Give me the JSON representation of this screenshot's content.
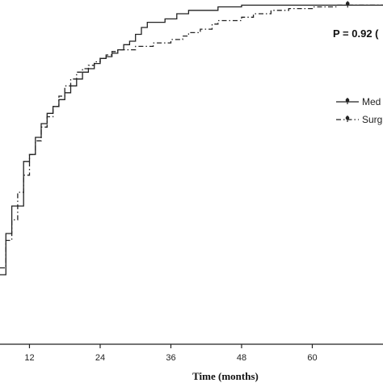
{
  "chart_data": {
    "type": "line",
    "xlabel": "Time (months)",
    "x_ticks": [
      "12",
      "24",
      "36",
      "48",
      "60"
    ],
    "xlim": [
      7,
      72
    ],
    "ylim": [
      0,
      1
    ],
    "annotation": "P = 0.92 (",
    "legend": {
      "placement": "right",
      "entries": [
        "Med",
        "Surg"
      ]
    },
    "series": [
      {
        "name": "Med",
        "style": "solid",
        "color": "#222222",
        "points": [
          [
            7,
            0.2
          ],
          [
            8,
            0.2
          ],
          [
            8,
            0.32
          ],
          [
            9,
            0.32
          ],
          [
            9,
            0.4
          ],
          [
            11,
            0.4
          ],
          [
            11,
            0.53
          ],
          [
            12,
            0.53
          ],
          [
            12,
            0.55
          ],
          [
            13,
            0.55
          ],
          [
            13,
            0.6
          ],
          [
            14,
            0.6
          ],
          [
            14,
            0.64
          ],
          [
            15,
            0.64
          ],
          [
            15,
            0.67
          ],
          [
            16,
            0.67
          ],
          [
            16,
            0.69
          ],
          [
            17,
            0.69
          ],
          [
            17,
            0.71
          ],
          [
            18,
            0.71
          ],
          [
            18,
            0.73
          ],
          [
            19,
            0.73
          ],
          [
            19,
            0.75
          ],
          [
            20,
            0.75
          ],
          [
            20,
            0.77
          ],
          [
            21,
            0.77
          ],
          [
            21,
            0.79
          ],
          [
            22,
            0.79
          ],
          [
            22,
            0.8
          ],
          [
            23,
            0.8
          ],
          [
            23,
            0.815
          ],
          [
            24,
            0.815
          ],
          [
            24,
            0.83
          ],
          [
            25,
            0.83
          ],
          [
            25,
            0.835
          ],
          [
            26,
            0.835
          ],
          [
            26,
            0.845
          ],
          [
            27,
            0.845
          ],
          [
            27,
            0.855
          ],
          [
            28,
            0.855
          ],
          [
            28,
            0.87
          ],
          [
            29,
            0.87
          ],
          [
            29,
            0.88
          ],
          [
            30,
            0.88
          ],
          [
            30,
            0.9
          ],
          [
            31,
            0.9
          ],
          [
            31,
            0.92
          ],
          [
            32,
            0.92
          ],
          [
            32,
            0.935
          ],
          [
            35,
            0.935
          ],
          [
            35,
            0.945
          ],
          [
            37,
            0.945
          ],
          [
            37,
            0.96
          ],
          [
            39,
            0.96
          ],
          [
            39,
            0.97
          ],
          [
            44,
            0.97
          ],
          [
            44,
            0.98
          ],
          [
            48,
            0.98
          ],
          [
            48,
            0.985
          ],
          [
            72,
            0.985
          ]
        ]
      },
      {
        "name": "Surg",
        "style": "dashdot",
        "color": "#222222",
        "points": [
          [
            7,
            0.22
          ],
          [
            8,
            0.22
          ],
          [
            8,
            0.3
          ],
          [
            9,
            0.3
          ],
          [
            9,
            0.36
          ],
          [
            10,
            0.36
          ],
          [
            10,
            0.44
          ],
          [
            11,
            0.44
          ],
          [
            11,
            0.49
          ],
          [
            12,
            0.49
          ],
          [
            12,
            0.55
          ],
          [
            13,
            0.55
          ],
          [
            13,
            0.59
          ],
          [
            14,
            0.59
          ],
          [
            14,
            0.63
          ],
          [
            15,
            0.63
          ],
          [
            15,
            0.66
          ],
          [
            16,
            0.66
          ],
          [
            16,
            0.69
          ],
          [
            17,
            0.69
          ],
          [
            17,
            0.72
          ],
          [
            18,
            0.72
          ],
          [
            18,
            0.75
          ],
          [
            19,
            0.75
          ],
          [
            19,
            0.77
          ],
          [
            20,
            0.77
          ],
          [
            20,
            0.79
          ],
          [
            21,
            0.79
          ],
          [
            21,
            0.8
          ],
          [
            22,
            0.8
          ],
          [
            22,
            0.81
          ],
          [
            23,
            0.81
          ],
          [
            23,
            0.82
          ],
          [
            24,
            0.82
          ],
          [
            24,
            0.83
          ],
          [
            25,
            0.83
          ],
          [
            25,
            0.84
          ],
          [
            26,
            0.84
          ],
          [
            26,
            0.85
          ],
          [
            27,
            0.85
          ],
          [
            27,
            0.855
          ],
          [
            30,
            0.855
          ],
          [
            30,
            0.865
          ],
          [
            33,
            0.865
          ],
          [
            33,
            0.875
          ],
          [
            36,
            0.875
          ],
          [
            36,
            0.885
          ],
          [
            38,
            0.885
          ],
          [
            38,
            0.895
          ],
          [
            39,
            0.895
          ],
          [
            39,
            0.905
          ],
          [
            41,
            0.905
          ],
          [
            41,
            0.915
          ],
          [
            43,
            0.915
          ],
          [
            43,
            0.93
          ],
          [
            44,
            0.93
          ],
          [
            44,
            0.94
          ],
          [
            48,
            0.94
          ],
          [
            48,
            0.95
          ],
          [
            50,
            0.95
          ],
          [
            50,
            0.96
          ],
          [
            53,
            0.96
          ],
          [
            53,
            0.97
          ],
          [
            56,
            0.97
          ],
          [
            56,
            0.975
          ],
          [
            60,
            0.975
          ],
          [
            60,
            0.98
          ],
          [
            64,
            0.98
          ],
          [
            64,
            0.985
          ],
          [
            72,
            0.985
          ]
        ]
      }
    ],
    "censor_marks": [
      {
        "x": 66,
        "y": 0.985
      }
    ]
  }
}
